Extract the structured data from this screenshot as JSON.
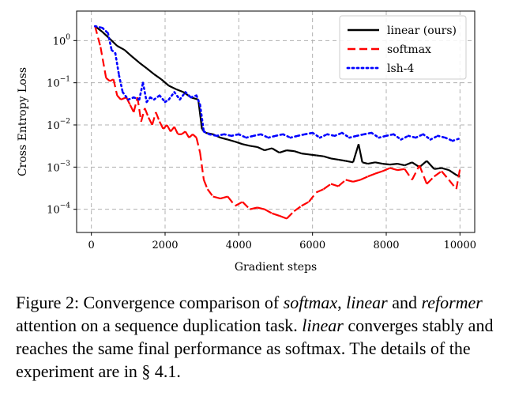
{
  "chart_data": {
    "type": "line",
    "xlabel": "Gradient steps",
    "ylabel": "Cross Entropy Loss",
    "y_scale": "log",
    "xlim": [
      -400,
      10400
    ],
    "ylim_log10": [
      -4.55,
      0.7
    ],
    "x_ticks": [
      0,
      2000,
      4000,
      6000,
      8000,
      10000
    ],
    "y_ticks": [
      {
        "base": "10",
        "exp": "0",
        "value": 1
      },
      {
        "base": "10",
        "exp": "−1",
        "value": 0.1
      },
      {
        "base": "10",
        "exp": "−2",
        "value": 0.01
      },
      {
        "base": "10",
        "exp": "−3",
        "value": 0.001
      },
      {
        "base": "10",
        "exp": "−4",
        "value": 0.0001
      }
    ],
    "grid": true,
    "legend_position": "top-right",
    "series": [
      {
        "name": "linear (ours)",
        "color": "#000000",
        "style": "solid",
        "x": [
          100,
          300,
          500,
          700,
          900,
          1100,
          1300,
          1500,
          1700,
          1900,
          2100,
          2300,
          2500,
          2700,
          2900,
          3000,
          3100,
          3300,
          3500,
          3700,
          3900,
          4100,
          4300,
          4500,
          4700,
          4900,
          5100,
          5300,
          5500,
          5700,
          5900,
          6100,
          6300,
          6500,
          6700,
          6900,
          7100,
          7250,
          7350,
          7500,
          7700,
          7900,
          8100,
          8300,
          8500,
          8700,
          8900,
          9100,
          9300,
          9500,
          9700,
          9900,
          10000
        ],
        "y": [
          2.2,
          1.6,
          1.1,
          0.75,
          0.6,
          0.42,
          0.3,
          0.22,
          0.16,
          0.12,
          0.085,
          0.07,
          0.06,
          0.045,
          0.04,
          0.008,
          0.0065,
          0.006,
          0.005,
          0.0045,
          0.004,
          0.0035,
          0.0032,
          0.003,
          0.0025,
          0.0028,
          0.0022,
          0.0025,
          0.0024,
          0.0021,
          0.002,
          0.0019,
          0.0018,
          0.0016,
          0.0015,
          0.0014,
          0.0013,
          0.0035,
          0.0013,
          0.0012,
          0.0013,
          0.0012,
          0.00115,
          0.0012,
          0.0011,
          0.0013,
          0.001,
          0.0014,
          0.0009,
          0.00095,
          0.00085,
          0.00065,
          0.0006
        ]
      },
      {
        "name": "softmax",
        "color": "#ff0000",
        "style": "dashed",
        "x": [
          100,
          250,
          400,
          500,
          600,
          700,
          800,
          950,
          1050,
          1150,
          1250,
          1350,
          1450,
          1550,
          1650,
          1750,
          1850,
          1950,
          2050,
          2150,
          2250,
          2350,
          2450,
          2550,
          2650,
          2750,
          2850,
          2950,
          3050,
          3150,
          3300,
          3500,
          3700,
          3900,
          4100,
          4300,
          4500,
          4700,
          4900,
          5100,
          5300,
          5500,
          5700,
          5900,
          6100,
          6300,
          6500,
          6700,
          6900,
          7100,
          7300,
          7500,
          7700,
          7900,
          8100,
          8300,
          8500,
          8700,
          8900,
          9100,
          9300,
          9500,
          9700,
          9900,
          10000
        ],
        "y": [
          2.2,
          0.7,
          0.13,
          0.11,
          0.12,
          0.05,
          0.04,
          0.045,
          0.03,
          0.02,
          0.045,
          0.012,
          0.025,
          0.015,
          0.01,
          0.02,
          0.012,
          0.008,
          0.01,
          0.007,
          0.009,
          0.006,
          0.006,
          0.007,
          0.005,
          0.006,
          0.005,
          0.0022,
          0.0005,
          0.0003,
          0.0002,
          0.00018,
          0.0002,
          0.00012,
          0.00015,
          0.0001,
          0.00011,
          0.0001,
          8e-05,
          7e-05,
          6e-05,
          9e-05,
          0.00012,
          0.00015,
          0.00025,
          0.0003,
          0.0004,
          0.00035,
          0.0005,
          0.00045,
          0.0005,
          0.0006,
          0.0007,
          0.0008,
          0.00095,
          0.00085,
          0.0009,
          0.0005,
          0.0011,
          0.0004,
          0.0006,
          0.0008,
          0.0005,
          0.0003,
          0.0009
        ]
      },
      {
        "name": "lsh-4",
        "color": "#0000ff",
        "style": "dotted",
        "x": [
          100,
          300,
          450,
          550,
          650,
          750,
          850,
          1000,
          1150,
          1300,
          1400,
          1500,
          1600,
          1700,
          1850,
          2000,
          2100,
          2250,
          2400,
          2550,
          2700,
          2850,
          2950,
          3050,
          3200,
          3400,
          3600,
          3800,
          4000,
          4200,
          4400,
          4600,
          4800,
          5000,
          5200,
          5400,
          5600,
          5800,
          6000,
          6200,
          6400,
          6600,
          6800,
          7000,
          7200,
          7400,
          7600,
          7800,
          8000,
          8200,
          8400,
          8600,
          8800,
          9000,
          9200,
          9400,
          9600,
          9800,
          10000
        ],
        "y": [
          2.2,
          2.0,
          1.5,
          0.6,
          0.5,
          0.15,
          0.06,
          0.04,
          0.045,
          0.04,
          0.1,
          0.035,
          0.045,
          0.04,
          0.05,
          0.035,
          0.04,
          0.06,
          0.04,
          0.06,
          0.045,
          0.05,
          0.03,
          0.007,
          0.006,
          0.0055,
          0.006,
          0.0055,
          0.006,
          0.005,
          0.0055,
          0.006,
          0.005,
          0.0055,
          0.006,
          0.005,
          0.0055,
          0.006,
          0.0065,
          0.005,
          0.006,
          0.0055,
          0.0065,
          0.005,
          0.0055,
          0.006,
          0.0065,
          0.005,
          0.0055,
          0.006,
          0.0045,
          0.0055,
          0.005,
          0.006,
          0.0045,
          0.0055,
          0.005,
          0.0042,
          0.0048
        ]
      }
    ]
  },
  "caption": {
    "prefix": "Figure 2: Convergence comparison of ",
    "em1": "softmax",
    "sep1": ", ",
    "em2": "linear",
    "sep2": " and ",
    "em3": "reformer",
    "mid": " attention on a sequence duplication task. ",
    "em4": "linear",
    "suffix": " converges stably and reaches the same final performance as softmax. The details of the experiment are in § 4.1."
  }
}
